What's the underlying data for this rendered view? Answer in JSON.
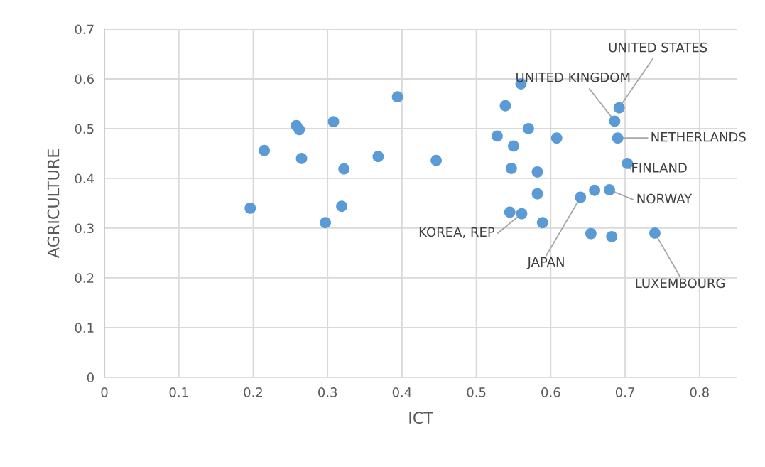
{
  "chart_data": {
    "type": "scatter",
    "xlabel": "ICT",
    "ylabel": "AGRICULTURE",
    "x": [
      0.196,
      0.215,
      0.258,
      0.262,
      0.265,
      0.297,
      0.308,
      0.319,
      0.322,
      0.368,
      0.394,
      0.446,
      0.528,
      0.539,
      0.545,
      0.547,
      0.55,
      0.56,
      0.561,
      0.57,
      0.582,
      0.582,
      0.589,
      0.608,
      0.64,
      0.654,
      0.659,
      0.679,
      0.682,
      0.686,
      0.69,
      0.692,
      0.703,
      0.74
    ],
    "values": [
      0.34,
      0.456,
      0.506,
      0.498,
      0.44,
      0.311,
      0.514,
      0.344,
      0.419,
      0.444,
      0.564,
      0.436,
      0.485,
      0.546,
      0.332,
      0.42,
      0.465,
      0.59,
      0.329,
      0.5,
      0.413,
      0.369,
      0.311,
      0.481,
      0.362,
      0.289,
      0.376,
      0.377,
      0.283,
      0.515,
      0.481,
      0.542,
      0.43,
      0.29
    ],
    "color": "#5b9bd5",
    "marker": "circle",
    "grid": true,
    "legend": false,
    "xlim": [
      0,
      0.85
    ],
    "ylim": [
      0,
      0.7
    ],
    "xticks": [
      0,
      0.1,
      0.2,
      0.3,
      0.4,
      0.5,
      0.6,
      0.7,
      0.8
    ],
    "yticks": [
      0,
      0.1,
      0.2,
      0.3,
      0.4,
      0.5,
      0.6,
      0.7
    ],
    "annotations": [
      {
        "text": "UNITED STATES",
        "x": 0.692,
        "y": 0.542
      },
      {
        "text": "UNITED KINGDOM",
        "x": 0.686,
        "y": 0.515
      },
      {
        "text": "NETHERLANDS",
        "x": 0.69,
        "y": 0.481
      },
      {
        "text": "FINLAND",
        "x": 0.703,
        "y": 0.43
      },
      {
        "text": "NORWAY",
        "x": 0.679,
        "y": 0.377
      },
      {
        "text": "KOREA, REP",
        "x": 0.561,
        "y": 0.329
      },
      {
        "text": "JAPAN",
        "x": 0.64,
        "y": 0.362
      },
      {
        "text": "LUXEMBOURG",
        "x": 0.74,
        "y": 0.29
      }
    ]
  }
}
